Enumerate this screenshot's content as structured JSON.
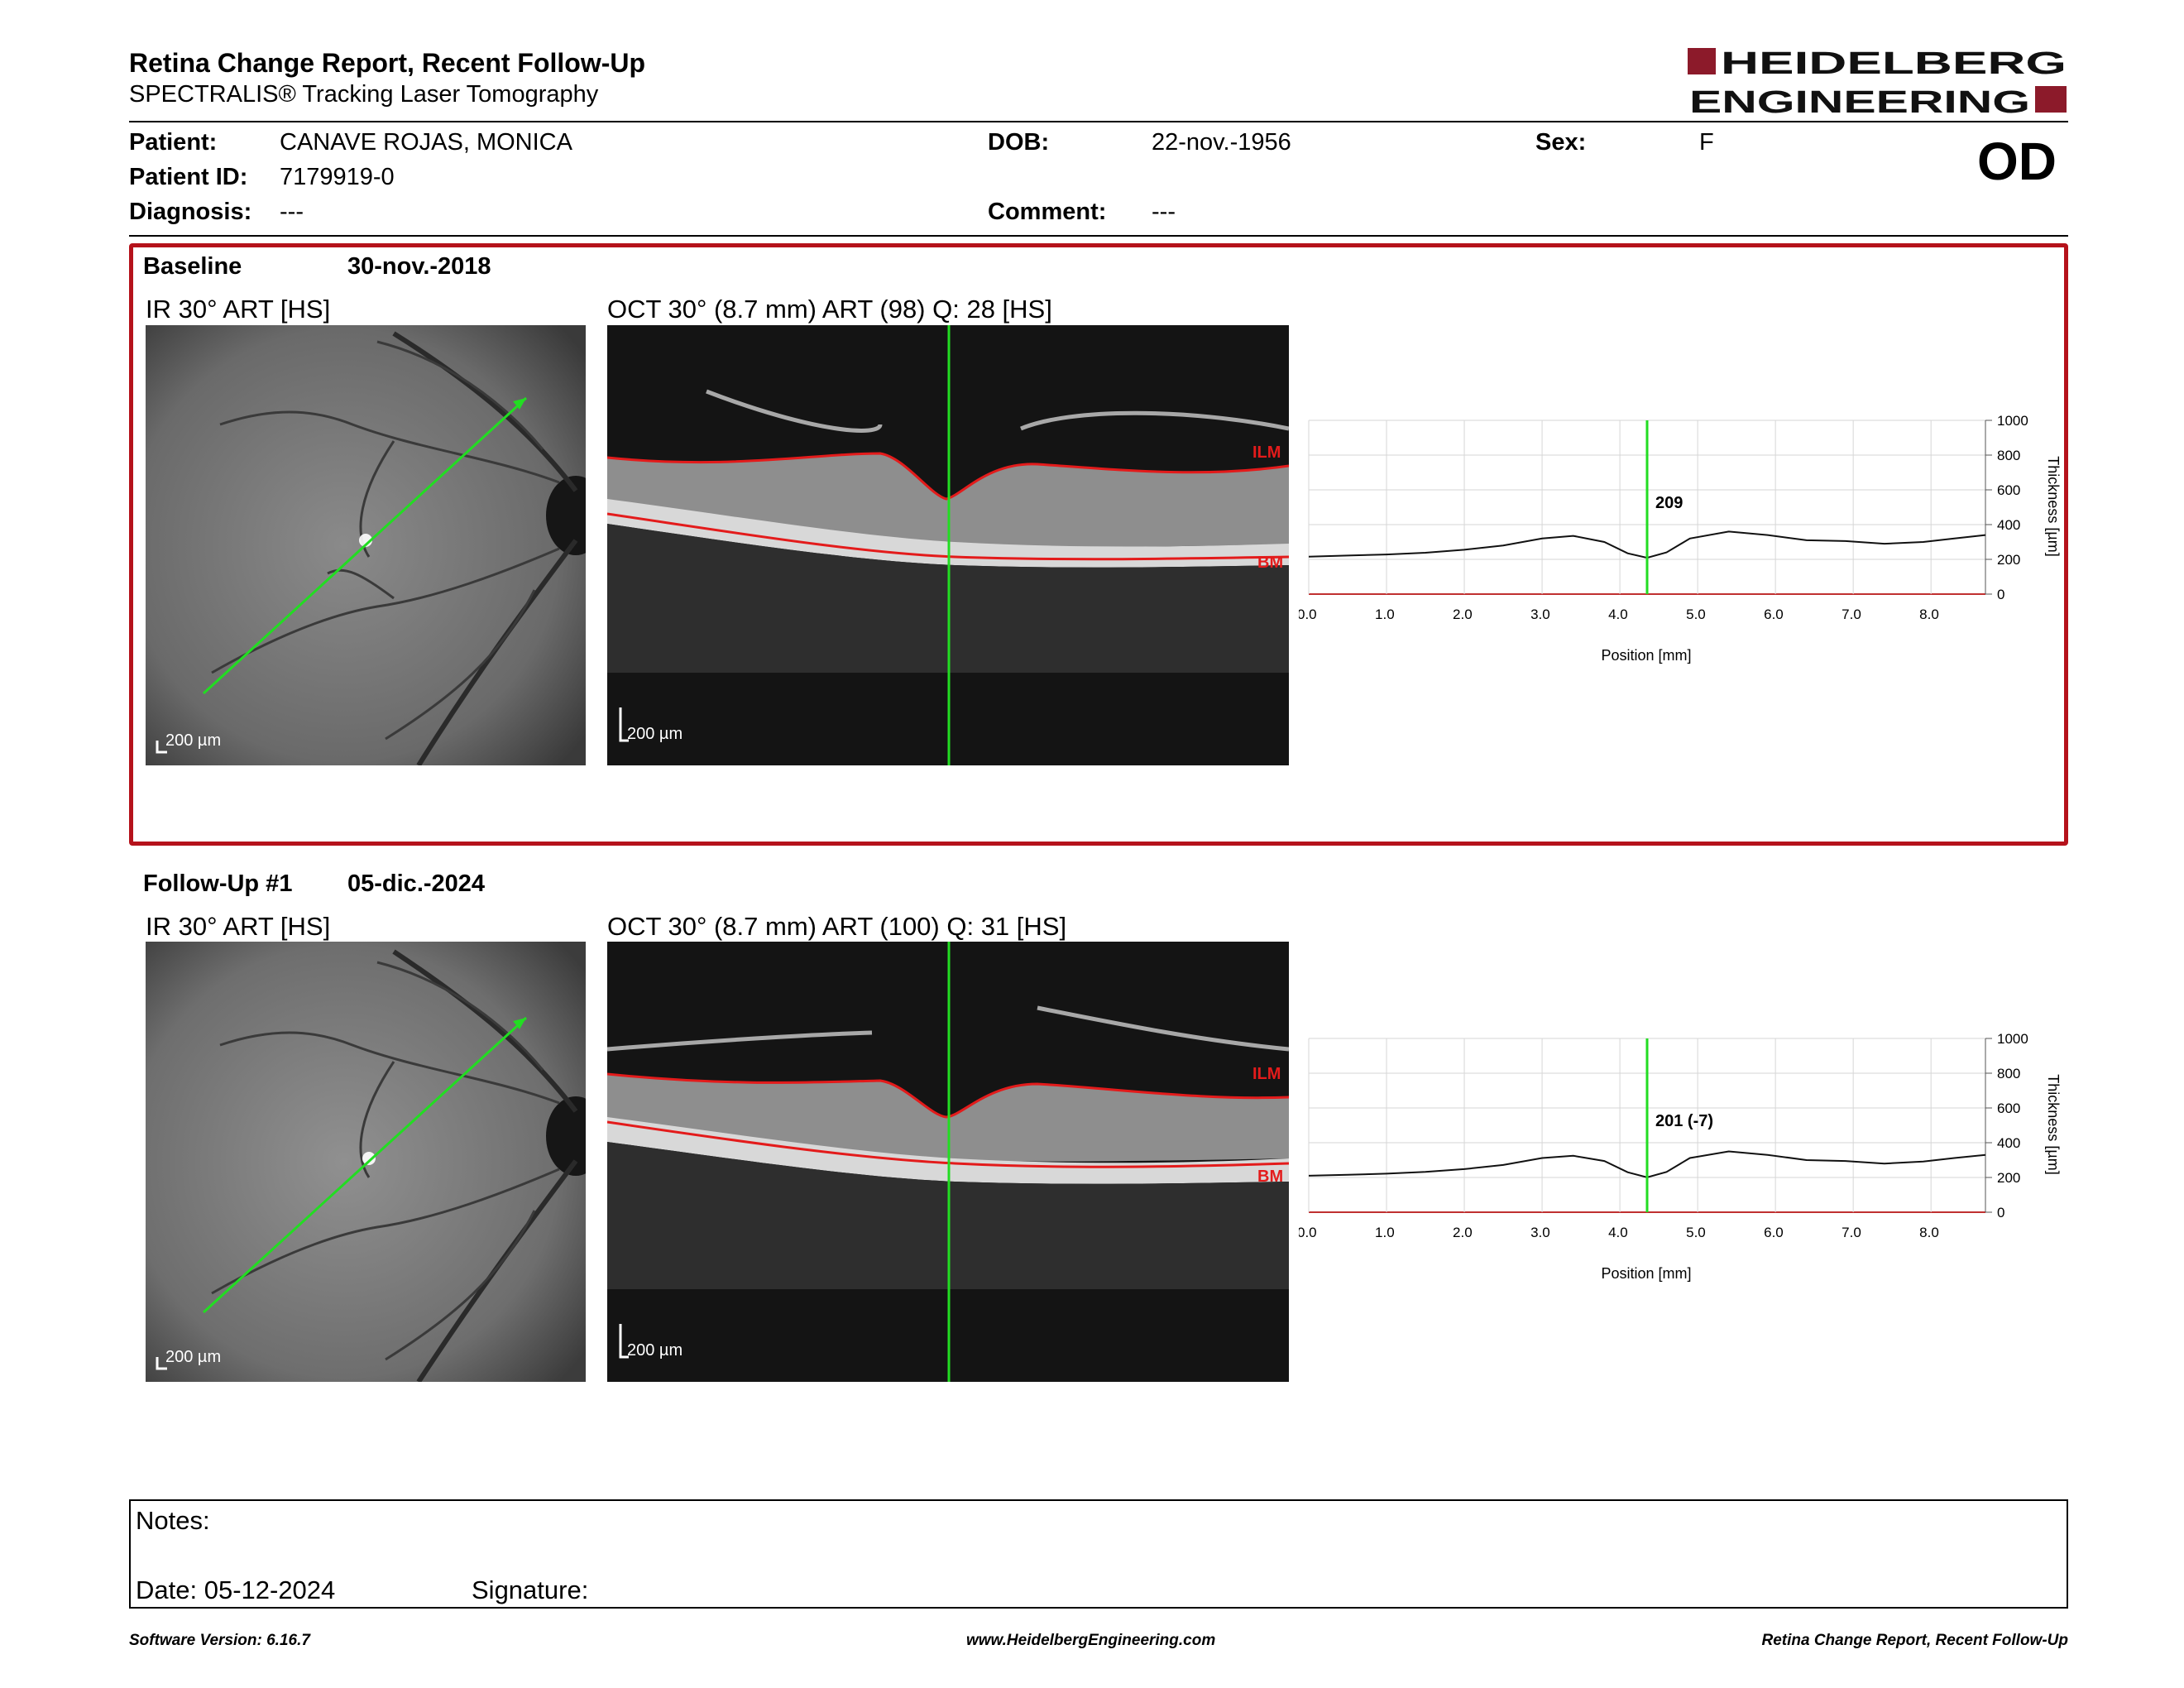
{
  "header": {
    "title": "Retina Change Report, Recent Follow-Up",
    "subtitle": "SPECTRALIS® Tracking Laser Tomography",
    "logo_line1": "HEIDELBERG",
    "logo_line2": "ENGINEERING",
    "brand_color": "#8c1a2a"
  },
  "patient": {
    "patient_label": "Patient:",
    "patient_name": "CANAVE ROJAS, MONICA",
    "id_label": "Patient ID:",
    "id_value": "7179919-0",
    "diagnosis_label": "Diagnosis:",
    "diagnosis_value": "---",
    "dob_label": "DOB:",
    "dob_value": "22-nov.-1956",
    "comment_label": "Comment:",
    "comment_value": "---",
    "sex_label": "Sex:",
    "sex_value": "F",
    "eye": "OD"
  },
  "baseline": {
    "title": "Baseline",
    "date": "30-nov.-2018",
    "ir_label": "IR 30° ART [HS]",
    "oct_label": "OCT 30° (8.7 mm) ART (98) Q: 28 [HS]",
    "scale_ir": "200 µm",
    "scale_oct": "200 µm",
    "ilm_label": "ILM",
    "bm_label": "BM",
    "highlight_color": "#b5121b"
  },
  "followup": {
    "title": "Follow-Up #1",
    "date": "05-dic.-2024",
    "ir_label": "IR 30° ART [HS]",
    "oct_label": "OCT 30° (8.7 mm) ART (100) Q: 31 [HS]",
    "scale_ir": "200 µm",
    "scale_oct": "200 µm",
    "ilm_label": "ILM",
    "bm_label": "BM"
  },
  "chart_data": [
    {
      "type": "line",
      "xlabel": "Position [mm]",
      "ylabel": "Thickness [µm]",
      "xlim": [
        0,
        8.7
      ],
      "ylim": [
        0,
        1000
      ],
      "x_ticks": [
        "0.0",
        "1.0",
        "2.0",
        "3.0",
        "4.0",
        "5.0",
        "6.0",
        "7.0",
        "8.0"
      ],
      "y_ticks": [
        "0",
        "200",
        "400",
        "600",
        "800",
        "1000"
      ],
      "grid": true,
      "marker_x": 4.35,
      "marker_label": "209",
      "series": [
        {
          "x": [
            0,
            0.5,
            1.0,
            1.5,
            2.0,
            2.5,
            3.0,
            3.4,
            3.8,
            4.1,
            4.35,
            4.6,
            4.9,
            5.4,
            5.9,
            6.4,
            6.9,
            7.4,
            7.9,
            8.3,
            8.7
          ],
          "values": [
            215,
            222,
            228,
            238,
            255,
            280,
            320,
            335,
            300,
            235,
            209,
            240,
            320,
            360,
            340,
            310,
            305,
            290,
            300,
            320,
            340
          ]
        }
      ]
    },
    {
      "type": "line",
      "xlabel": "Position [mm]",
      "ylabel": "Thickness [µm]",
      "xlim": [
        0,
        8.7
      ],
      "ylim": [
        0,
        1000
      ],
      "x_ticks": [
        "0.0",
        "1.0",
        "2.0",
        "3.0",
        "4.0",
        "5.0",
        "6.0",
        "7.0",
        "8.0"
      ],
      "y_ticks": [
        "0",
        "200",
        "400",
        "600",
        "800",
        "1000"
      ],
      "grid": true,
      "marker_x": 4.35,
      "marker_label": "201 (-7)",
      "series": [
        {
          "x": [
            0,
            0.5,
            1.0,
            1.5,
            2.0,
            2.5,
            3.0,
            3.4,
            3.8,
            4.1,
            4.35,
            4.6,
            4.9,
            5.4,
            5.9,
            6.4,
            6.9,
            7.4,
            7.9,
            8.3,
            8.7
          ],
          "values": [
            210,
            215,
            222,
            232,
            248,
            272,
            312,
            325,
            295,
            230,
            201,
            232,
            312,
            350,
            330,
            300,
            295,
            280,
            292,
            312,
            330
          ]
        }
      ]
    }
  ],
  "notes": {
    "notes_label": "Notes:",
    "date_label": "Date: 05-12-2024",
    "signature_label": "Signature:"
  },
  "footer": {
    "software": "Software Version: 6.16.7",
    "website": "www.HeidelbergEngineering.com",
    "report_name": "Retina Change Report, Recent Follow-Up"
  }
}
